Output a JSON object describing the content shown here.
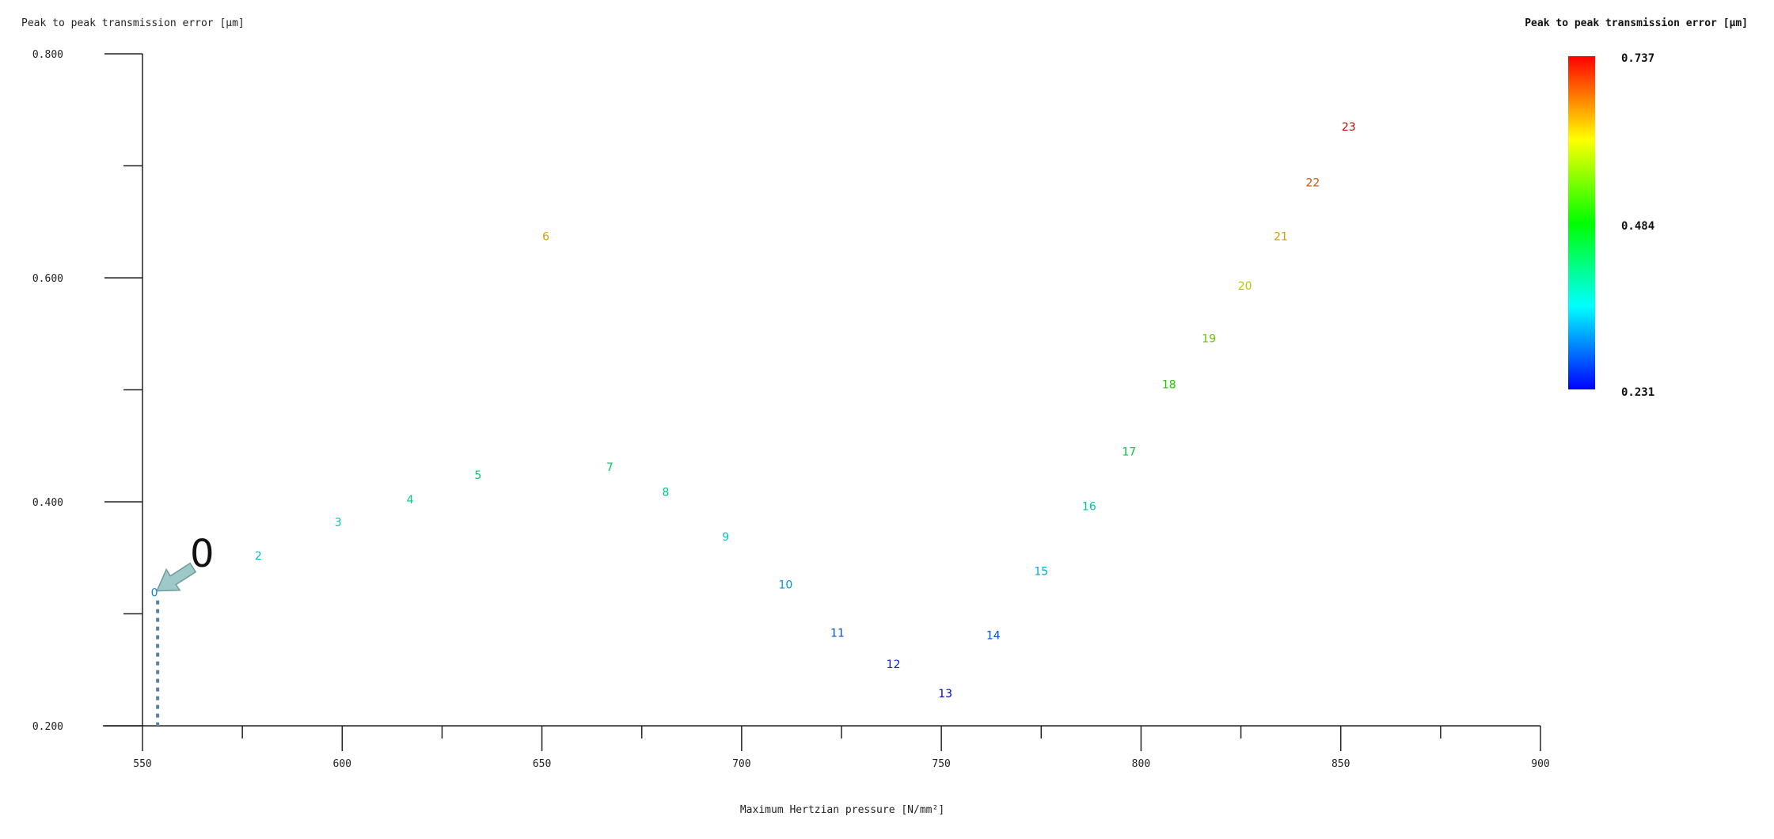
{
  "chart_data": {
    "type": "scatter",
    "title": "",
    "ylabel": "Peak to peak transmission error [μm]",
    "xlabel": "Maximum Hertzian pressure [N/mm²]",
    "xlim": [
      550,
      900
    ],
    "ylim": [
      0.2,
      0.8
    ],
    "x_ticks": [
      "550",
      "600",
      "650",
      "700",
      "750",
      "800",
      "850",
      "900"
    ],
    "x_tick_values": [
      550,
      600,
      650,
      700,
      750,
      800,
      850,
      900
    ],
    "y_ticks": [
      "0.200",
      "0.400",
      "0.600",
      "0.800"
    ],
    "y_tick_values": [
      0.2,
      0.4,
      0.6,
      0.8
    ],
    "y_minor_tick_values": [
      0.3,
      0.5,
      0.7
    ],
    "x_minor_tick_values": [
      575,
      625,
      675,
      725,
      775,
      825,
      875
    ],
    "grid": false,
    "colorbar": {
      "title": "Peak to peak transmission error [μm]",
      "labels": [
        "0.737",
        "0.484",
        "0.231"
      ],
      "values": [
        0.737,
        0.484,
        0.231
      ],
      "placement": "top-right",
      "colors": [
        "#ff0000",
        "#ffff00",
        "#00ff00",
        "#00ffff",
        "#0000ff"
      ]
    },
    "points": [
      {
        "label": "0",
        "x": 553,
        "y": 0.319
      },
      {
        "label": "2",
        "x": 579,
        "y": 0.352
      },
      {
        "label": "3",
        "x": 599,
        "y": 0.382
      },
      {
        "label": "4",
        "x": 617,
        "y": 0.402
      },
      {
        "label": "5",
        "x": 634,
        "y": 0.424
      },
      {
        "label": "6",
        "x": 651,
        "y": 0.637
      },
      {
        "label": "7",
        "x": 667,
        "y": 0.431
      },
      {
        "label": "8",
        "x": 681,
        "y": 0.409
      },
      {
        "label": "9",
        "x": 696,
        "y": 0.369
      },
      {
        "label": "10",
        "x": 711,
        "y": 0.326
      },
      {
        "label": "11",
        "x": 724,
        "y": 0.283
      },
      {
        "label": "12",
        "x": 738,
        "y": 0.255
      },
      {
        "label": "13",
        "x": 751,
        "y": 0.229
      },
      {
        "label": "14",
        "x": 763,
        "y": 0.281
      },
      {
        "label": "15",
        "x": 775,
        "y": 0.338
      },
      {
        "label": "16",
        "x": 787,
        "y": 0.396
      },
      {
        "label": "17",
        "x": 797,
        "y": 0.445
      },
      {
        "label": "18",
        "x": 807,
        "y": 0.505
      },
      {
        "label": "19",
        "x": 817,
        "y": 0.546
      },
      {
        "label": "20",
        "x": 826,
        "y": 0.593
      },
      {
        "label": "21",
        "x": 835,
        "y": 0.637
      },
      {
        "label": "22",
        "x": 843,
        "y": 0.685
      },
      {
        "label": "23",
        "x": 852,
        "y": 0.735
      }
    ],
    "annotation": {
      "label": "0",
      "target_x": 553,
      "target_y": 0.319,
      "marker_color": "#9ec9c9",
      "dashed_line_color": "#5a7fa8"
    }
  }
}
